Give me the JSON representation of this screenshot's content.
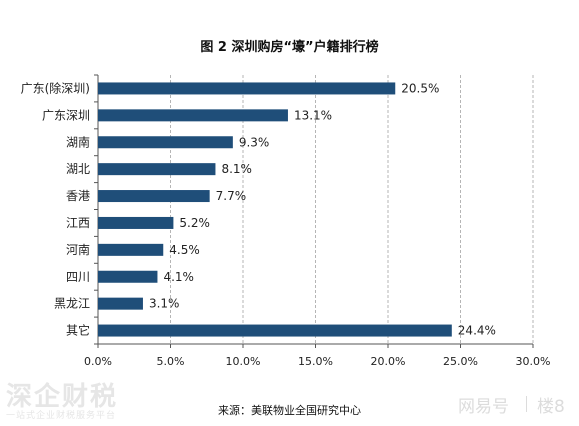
{
  "chart_data": {
    "type": "bar",
    "orientation": "horizontal",
    "title": "图 2 深圳购房“壕”户籍排行榜",
    "categories": [
      "广东(除深圳)",
      "广东深圳",
      "湖南",
      "湖北",
      "香港",
      "江西",
      "河南",
      "四川",
      "黑龙江",
      "其它"
    ],
    "values": [
      20.5,
      13.1,
      9.3,
      8.1,
      7.7,
      5.2,
      4.5,
      4.1,
      3.1,
      24.4
    ],
    "value_labels": [
      "20.5%",
      "13.1%",
      "9.3%",
      "8.1%",
      "7.7%",
      "5.2%",
      "4.5%",
      "4.1%",
      "3.1%",
      "24.4%"
    ],
    "xlim": [
      0,
      30
    ],
    "x_ticks": [
      "0.0%",
      "5.0%",
      "10.0%",
      "15.0%",
      "20.0%",
      "25.0%",
      "30.0%"
    ],
    "grid": "vertical dashed",
    "bar_color": "#1f4e79"
  },
  "source": "来源：美联物业全国研究中心",
  "watermark": {
    "left_title": "深企财税",
    "left_sub": "一站式企业财税服务平台",
    "right_brand": "网易号",
    "right_floor": "楼8"
  }
}
